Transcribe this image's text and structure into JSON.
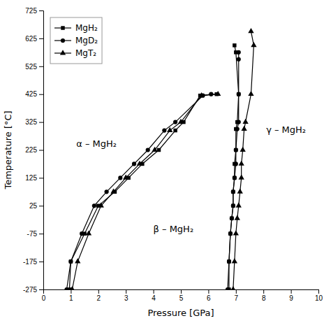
{
  "chart_data": {
    "type": "line",
    "x_label": "Pressure [GPa]",
    "y_label": "Temperature [°C]",
    "xlim": [
      0,
      10
    ],
    "ylim": [
      -275,
      725
    ],
    "xticks": [
      0,
      1,
      2,
      3,
      4,
      5,
      6,
      7,
      8,
      9,
      10
    ],
    "yticks": [
      -275,
      -175,
      -75,
      25,
      125,
      225,
      325,
      425,
      525,
      625,
      725
    ],
    "grid": false,
    "legend": "upper left",
    "series": [
      {
        "name": "MgH₂",
        "color": "#000000",
        "marker": "square",
        "line_style": "solid",
        "x": [
          0.95,
          1.0,
          1.5,
          2.0,
          2.6,
          3.1,
          3.6,
          4.2,
          4.8,
          5.1,
          5.7,
          6.3
        ],
        "values": [
          -275,
          -175,
          -75,
          25,
          75,
          125,
          175,
          225,
          295,
          325,
          420,
          425
        ]
      },
      {
        "color": "#000000",
        "marker": "square",
        "line_style": "solid",
        "x": [
          6.75,
          6.75,
          6.8,
          6.85,
          6.9,
          6.9,
          6.95,
          6.95,
          7.0,
          7.0,
          7.05,
          7.1,
          7.0,
          6.95
        ],
        "values": [
          -275,
          -175,
          -75,
          -20,
          25,
          75,
          125,
          175,
          225,
          300,
          325,
          425,
          575,
          600
        ]
      },
      {
        "name": "MgD₂",
        "color": "#000000",
        "marker": "circle",
        "line_style": "solid",
        "x": [
          0.85,
          1.0,
          1.4,
          1.85,
          2.3,
          2.8,
          3.3,
          3.8,
          4.4,
          4.8,
          5.8,
          6.1
        ],
        "values": [
          -275,
          -175,
          -75,
          25,
          75,
          125,
          175,
          225,
          295,
          325,
          420,
          425
        ]
      },
      {
        "color": "#000000",
        "marker": "circle",
        "line_style": "solid",
        "x": [
          6.7,
          6.75,
          6.8,
          6.85,
          6.9,
          6.9,
          6.95,
          7.0,
          7.0,
          7.05,
          7.1,
          7.1,
          7.1,
          7.1
        ],
        "values": [
          -275,
          -175,
          -75,
          -20,
          25,
          75,
          125,
          175,
          225,
          300,
          325,
          425,
          550,
          575
        ]
      },
      {
        "name": "MgT₂",
        "color": "#000000",
        "marker": "triangle",
        "line_style": "solid",
        "x": [
          1.05,
          1.25,
          1.65,
          2.1,
          2.55,
          3.0,
          3.5,
          4.05,
          4.6,
          5.0,
          5.75,
          6.35
        ],
        "values": [
          -275,
          -175,
          -75,
          25,
          75,
          125,
          175,
          225,
          295,
          325,
          420,
          425
        ]
      },
      {
        "color": "#000000",
        "marker": "triangle",
        "line_style": "solid",
        "x": [
          6.9,
          6.95,
          7.0,
          7.05,
          7.1,
          7.15,
          7.2,
          7.2,
          7.25,
          7.3,
          7.35,
          7.55,
          7.65,
          7.55
        ],
        "values": [
          -275,
          -175,
          -75,
          -20,
          25,
          75,
          125,
          175,
          225,
          300,
          325,
          425,
          600,
          650
        ]
      }
    ],
    "annotations": [
      {
        "text": "α – MgH₂",
        "x": 1.2,
        "y": 245
      },
      {
        "text": "β – MgH₂",
        "x": 4.0,
        "y": -60
      },
      {
        "text": "γ – MgH₂",
        "x": 8.1,
        "y": 295
      }
    ]
  }
}
